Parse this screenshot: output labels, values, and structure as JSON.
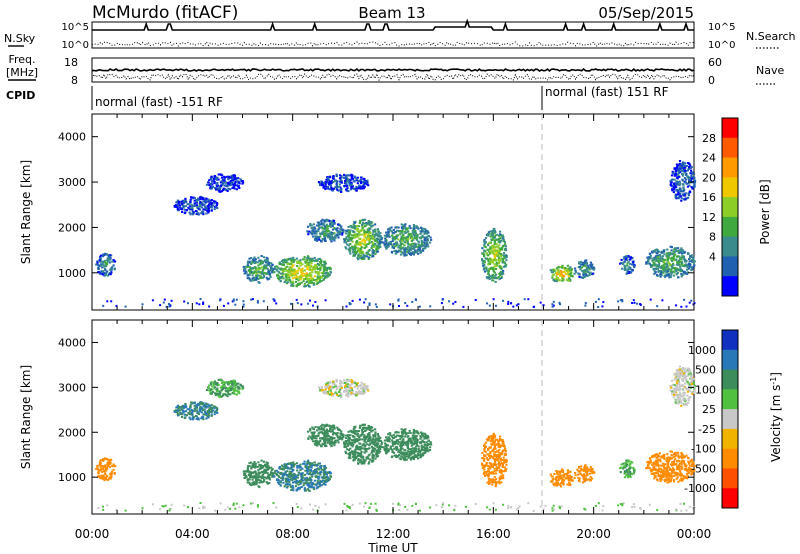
{
  "header": {
    "station": "McMurdo (fitACF)",
    "beam": "Beam 13",
    "date": "05/Sep/2015"
  },
  "info_panels": {
    "nsky": {
      "label": "N.Sky",
      "ticks": [
        "10^5",
        "10^0"
      ],
      "right_ticks": [
        "10^5",
        "10^0"
      ],
      "right_label": "N.Search"
    },
    "freq": {
      "label_lines": [
        "Freq.",
        "[MHz]"
      ],
      "ticks": [
        "18",
        "8"
      ],
      "right_ticks": [
        "60",
        "0"
      ],
      "right_label": "Nave"
    },
    "cpid": {
      "label": "CPID",
      "segments": [
        "normal (fast) -151 RF",
        "normal (fast) 151 RF"
      ]
    }
  },
  "chart_data": [
    {
      "type": "heatmap",
      "name": "power",
      "title": "",
      "ylabel": "Slant Range [km]",
      "xlabel": "",
      "x_range_hours": [
        0,
        24
      ],
      "ylim": [
        180,
        4500
      ],
      "yticks": [
        1000,
        2000,
        3000,
        4000
      ],
      "colorbar": {
        "label": "Power [dB]",
        "ticks": [
          "28",
          "24",
          "20",
          "16",
          "12",
          "8",
          "4"
        ],
        "colors": [
          "#ff0000",
          "#ff5a00",
          "#ff9a00",
          "#f0c800",
          "#8ccd28",
          "#3fa83f",
          "#3a8c8c",
          "#2060b0",
          "#0000ff"
        ]
      },
      "echo_regions": [
        {
          "t0": 0.1,
          "t1": 0.9,
          "r0": 950,
          "r1": 1450,
          "value": 9
        },
        {
          "t0": 3.2,
          "t1": 5.0,
          "r0": 2300,
          "r1": 2700,
          "value": 5
        },
        {
          "t0": 4.5,
          "t1": 6.0,
          "r0": 2800,
          "r1": 3200,
          "value": 4
        },
        {
          "t0": 6.0,
          "t1": 7.2,
          "r0": 800,
          "r1": 1400,
          "value": 12
        },
        {
          "t0": 7.2,
          "t1": 9.5,
          "r0": 700,
          "r1": 1400,
          "value": 18
        },
        {
          "t0": 8.5,
          "t1": 10.0,
          "r0": 1700,
          "r1": 2200,
          "value": 10
        },
        {
          "t0": 9.0,
          "t1": 11.0,
          "r0": 2800,
          "r1": 3200,
          "value": 5
        },
        {
          "t0": 10.0,
          "t1": 11.5,
          "r0": 1300,
          "r1": 2200,
          "value": 16
        },
        {
          "t0": 11.5,
          "t1": 13.5,
          "r0": 1400,
          "r1": 2100,
          "value": 12
        },
        {
          "t0": 15.5,
          "t1": 16.5,
          "r0": 800,
          "r1": 2000,
          "value": 16
        },
        {
          "t0": 18.2,
          "t1": 19.2,
          "r0": 800,
          "r1": 1200,
          "value": 20
        },
        {
          "t0": 19.2,
          "t1": 20.0,
          "r0": 900,
          "r1": 1300,
          "value": 10
        },
        {
          "t0": 21.0,
          "t1": 21.6,
          "r0": 1000,
          "r1": 1400,
          "value": 8
        },
        {
          "t0": 22.0,
          "t1": 24.0,
          "r0": 900,
          "r1": 1600,
          "value": 12
        },
        {
          "t0": 23.0,
          "t1": 24.0,
          "r0": 2600,
          "r1": 3500,
          "value": 6
        }
      ]
    },
    {
      "type": "heatmap",
      "name": "velocity",
      "title": "",
      "ylabel": "Slant Range [km]",
      "xlabel": "Time UT",
      "x_range_hours": [
        0,
        24
      ],
      "ylim": [
        180,
        4500
      ],
      "yticks": [
        1000,
        2000,
        3000,
        4000
      ],
      "xticks": [
        "00:00",
        "04:00",
        "08:00",
        "12:00",
        "16:00",
        "20:00",
        "00:00"
      ],
      "colorbar": {
        "label": "Velocity [m s^-1]",
        "ticks": [
          "1000",
          "500",
          "100",
          "25",
          "-25",
          "-100",
          "-500",
          "-1000"
        ],
        "colors": [
          "#1030c0",
          "#2878b8",
          "#3c8c5c",
          "#50c040",
          "#c8c8c8",
          "#f0b400",
          "#ff8c00",
          "#ff5000",
          "#ff0000"
        ]
      },
      "echo_regions": [
        {
          "t0": 0.1,
          "t1": 0.9,
          "r0": 950,
          "r1": 1450,
          "value": -150
        },
        {
          "t0": 3.2,
          "t1": 5.0,
          "r0": 2300,
          "r1": 2700,
          "value": 300
        },
        {
          "t0": 4.5,
          "t1": 6.0,
          "r0": 2800,
          "r1": 3200,
          "value": 60
        },
        {
          "t0": 6.0,
          "t1": 7.2,
          "r0": 800,
          "r1": 1400,
          "value": 200
        },
        {
          "t0": 7.2,
          "t1": 9.5,
          "r0": 700,
          "r1": 1400,
          "value": 300
        },
        {
          "t0": 8.5,
          "t1": 10.0,
          "r0": 1700,
          "r1": 2200,
          "value": 200
        },
        {
          "t0": 9.0,
          "t1": 11.0,
          "r0": 2800,
          "r1": 3200,
          "value": 0
        },
        {
          "t0": 10.0,
          "t1": 11.5,
          "r0": 1300,
          "r1": 2200,
          "value": 200
        },
        {
          "t0": 11.5,
          "t1": 13.5,
          "r0": 1400,
          "r1": 2100,
          "value": 200
        },
        {
          "t0": 15.5,
          "t1": 16.5,
          "r0": 800,
          "r1": 2000,
          "value": -200
        },
        {
          "t0": 18.2,
          "t1": 19.2,
          "r0": 800,
          "r1": 1200,
          "value": -200
        },
        {
          "t0": 19.2,
          "t1": 20.0,
          "r0": 900,
          "r1": 1300,
          "value": -150
        },
        {
          "t0": 21.0,
          "t1": 21.6,
          "r0": 1000,
          "r1": 1400,
          "value": 60
        },
        {
          "t0": 22.0,
          "t1": 24.0,
          "r0": 900,
          "r1": 1600,
          "value": -80
        },
        {
          "t0": 23.0,
          "t1": 24.0,
          "r0": 2600,
          "r1": 3500,
          "value": 0
        }
      ]
    }
  ]
}
